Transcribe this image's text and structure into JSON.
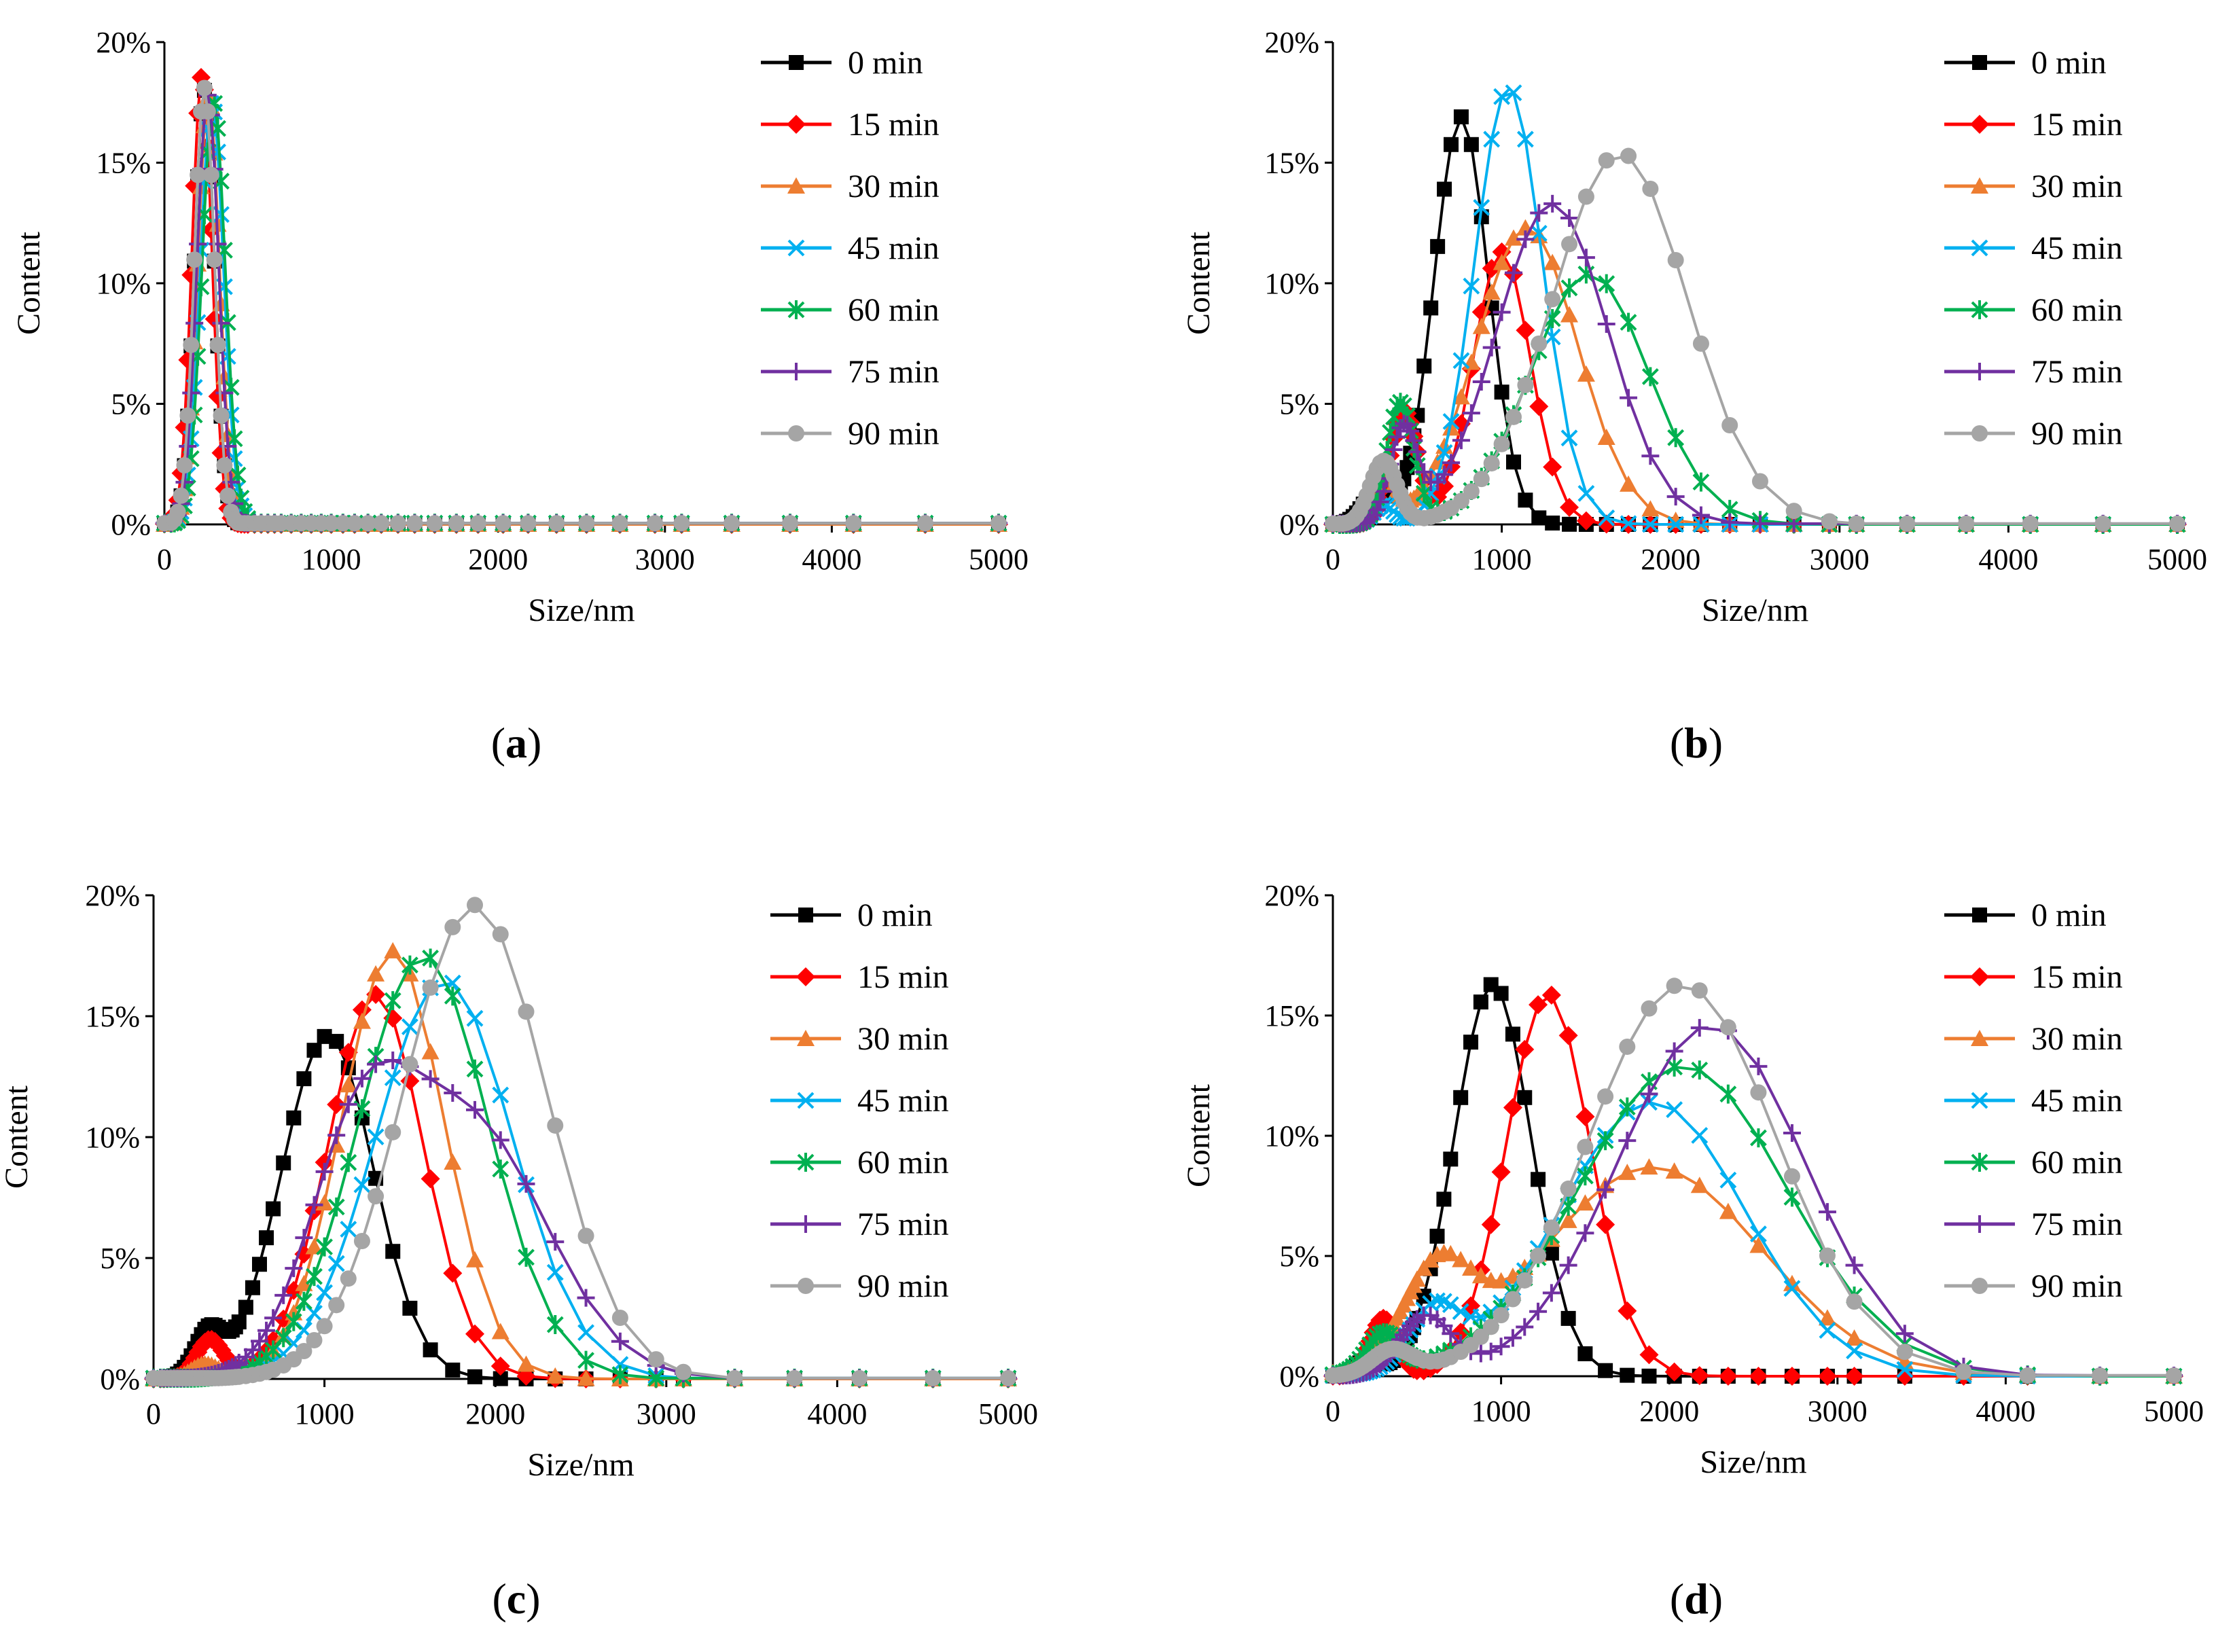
{
  "figure": {
    "type": "multi-panel particle size distribution"
  },
  "chart_data": [
    {
      "panel": "a",
      "type": "line",
      "title": "",
      "panel_label": {
        "open": "(",
        "letter": "a",
        "close": ")"
      },
      "xlabel": "Size/nm",
      "ylabel": "Content",
      "xlim": [
        0,
        5000
      ],
      "ylim": [
        0,
        20
      ],
      "xticks": [
        0,
        1000,
        2000,
        3000,
        4000,
        5000
      ],
      "yticks": [
        0,
        5,
        10,
        15,
        20
      ],
      "ytick_labels": [
        "0%",
        "5%",
        "10%",
        "15%",
        "20%"
      ],
      "legend_position": "top-right",
      "series": [
        {
          "name": "0 min",
          "color": "#000000",
          "marker": "square",
          "peaks": [
            [
              240,
              18,
              60
            ]
          ],
          "tail": 0
        },
        {
          "name": "15 min",
          "color": "#ff0000",
          "marker": "diamond",
          "peaks": [
            [
              225,
              18.6,
              60
            ]
          ],
          "tail": 0
        },
        {
          "name": "30 min",
          "color": "#ed7d31",
          "marker": "triangle",
          "peaks": [
            [
              265,
              17.8,
              65
            ]
          ],
          "tail": 0
        },
        {
          "name": "45 min",
          "color": "#00b0f0",
          "marker": "x",
          "peaks": [
            [
              285,
              17.5,
              70
            ]
          ],
          "tail": 0.05
        },
        {
          "name": "60 min",
          "color": "#00b050",
          "marker": "star",
          "peaks": [
            [
              295,
              17.5,
              70
            ]
          ],
          "tail": 0.05
        },
        {
          "name": "75 min",
          "color": "#7030a0",
          "marker": "plus",
          "peaks": [
            [
              260,
              17.8,
              65
            ]
          ],
          "tail": 0.05
        },
        {
          "name": "90 min",
          "color": "#a5a5a5",
          "marker": "circle",
          "peaks": [
            [
              240,
              18.1,
              60
            ]
          ],
          "tail": 0.05
        }
      ]
    },
    {
      "panel": "b",
      "type": "line",
      "title": "",
      "panel_label": {
        "open": "(",
        "letter": "b",
        "close": ")"
      },
      "xlabel": "Size/nm",
      "ylabel": "Content",
      "xlim": [
        0,
        5000
      ],
      "ylim": [
        0,
        20
      ],
      "xticks": [
        0,
        1000,
        2000,
        3000,
        4000,
        5000
      ],
      "yticks": [
        0,
        5,
        10,
        15,
        20
      ],
      "ytick_labels": [
        "0%",
        "5%",
        "10%",
        "15%",
        "20%"
      ],
      "legend_position": "top-right",
      "series": [
        {
          "name": "0 min",
          "color": "#000000",
          "marker": "square",
          "peaks": [
            [
              250,
              1.2,
              80
            ],
            [
              760,
              16.9,
              160
            ]
          ],
          "tail": 0
        },
        {
          "name": "15 min",
          "color": "#ff0000",
          "marker": "diamond",
          "peaks": [
            [
              420,
              4.7,
              80
            ],
            [
              1000,
              11.3,
              170
            ]
          ],
          "tail": 0
        },
        {
          "name": "30 min",
          "color": "#ed7d31",
          "marker": "triangle",
          "peaks": [
            [
              300,
              1.8,
              70
            ],
            [
              1150,
              12.3,
              300
            ]
          ],
          "tail": 0
        },
        {
          "name": "45 min",
          "color": "#00b0f0",
          "marker": "x",
          "peaks": [
            [
              300,
              0.8,
              60
            ],
            [
              1040,
              18.1,
              200
            ]
          ],
          "tail": 0
        },
        {
          "name": "60 min",
          "color": "#00b050",
          "marker": "star",
          "peaks": [
            [
              400,
              5.0,
              80
            ],
            [
              1520,
              10.4,
              350
            ]
          ],
          "tail": 0
        },
        {
          "name": "75 min",
          "color": "#7030a0",
          "marker": "plus",
          "peaks": [
            [
              420,
              3.8,
              80
            ],
            [
              1300,
              13.3,
              330
            ]
          ],
          "tail": 0.03
        },
        {
          "name": "90 min",
          "color": "#a5a5a5",
          "marker": "circle",
          "peaks": [
            [
              300,
              2.6,
              80
            ],
            [
              1700,
              15.4,
              400
            ]
          ],
          "tail": 0.03
        }
      ]
    },
    {
      "panel": "c",
      "type": "line",
      "title": "",
      "panel_label": {
        "open": "(",
        "letter": "c",
        "close": ")"
      },
      "xlabel": "Size/nm",
      "ylabel": "Content",
      "xlim": [
        0,
        5000
      ],
      "ylim": [
        0,
        20
      ],
      "xticks": [
        0,
        1000,
        2000,
        3000,
        4000,
        5000
      ],
      "yticks": [
        0,
        5,
        10,
        15,
        20
      ],
      "ytick_labels": [
        "0%",
        "5%",
        "10%",
        "15%",
        "20%"
      ],
      "legend_position": "top-right",
      "series": [
        {
          "name": "0 min",
          "color": "#000000",
          "marker": "square",
          "peaks": [
            [
              320,
              1.7,
              80
            ],
            [
              1020,
              14.2,
              270
            ]
          ],
          "tail": 0
        },
        {
          "name": "15 min",
          "color": "#ff0000",
          "marker": "diamond",
          "peaks": [
            [
              330,
              1.6,
              80
            ],
            [
              1300,
              15.9,
              280
            ]
          ],
          "tail": 0
        },
        {
          "name": "30 min",
          "color": "#ed7d31",
          "marker": "triangle",
          "peaks": [
            [
              300,
              0.6,
              80
            ],
            [
              1400,
              17.7,
              300
            ]
          ],
          "tail": 0
        },
        {
          "name": "45 min",
          "color": "#00b0f0",
          "marker": "x",
          "peaks": [
            [
              1700,
              16.5,
              400
            ]
          ],
          "tail": 0.03
        },
        {
          "name": "60 min",
          "color": "#00b050",
          "marker": "star",
          "peaks": [
            [
              1580,
              17.5,
              380
            ]
          ],
          "tail": 0.03
        },
        {
          "name": "75 min",
          "color": "#7030a0",
          "marker": "plus",
          "peaks": [
            [
              1200,
              8.5,
              300
            ],
            [
              1850,
              10.5,
              450
            ]
          ],
          "tail": 0.03
        },
        {
          "name": "90 min",
          "color": "#a5a5a5",
          "marker": "circle",
          "peaks": [
            [
              1880,
              19.6,
              420
            ]
          ],
          "tail": 0.03
        }
      ]
    },
    {
      "panel": "d",
      "type": "line",
      "title": "",
      "panel_label": {
        "open": "(",
        "letter": "d",
        "close": ")"
      },
      "xlabel": "Size/nm",
      "ylabel": "Content",
      "xlim": [
        0,
        5000
      ],
      "ylim": [
        0,
        20
      ],
      "xticks": [
        0,
        1000,
        2000,
        3000,
        4000,
        5000
      ],
      "yticks": [
        0,
        5,
        10,
        15,
        20
      ],
      "ytick_labels": [
        "0%",
        "5%",
        "10%",
        "15%",
        "20%"
      ],
      "legend_position": "top-right",
      "series": [
        {
          "name": "0 min",
          "color": "#000000",
          "marker": "square",
          "peaks": [
            [
              200,
              0.6,
              70
            ],
            [
              950,
              16.3,
              230
            ]
          ],
          "tail": 0
        },
        {
          "name": "15 min",
          "color": "#ff0000",
          "marker": "diamond",
          "peaks": [
            [
              300,
              2.4,
              80
            ],
            [
              1280,
              15.9,
              250
            ]
          ],
          "tail": 0
        },
        {
          "name": "30 min",
          "color": "#ed7d31",
          "marker": "triangle",
          "peaks": [
            [
              620,
              3.8,
              200
            ],
            [
              1900,
              8.7,
              650
            ]
          ],
          "tail": 0
        },
        {
          "name": "45 min",
          "color": "#00b0f0",
          "marker": "x",
          "peaks": [
            [
              600,
              2.4,
              150
            ],
            [
              1900,
              11.4,
              550
            ]
          ],
          "tail": 0
        },
        {
          "name": "60 min",
          "color": "#00b050",
          "marker": "star",
          "peaks": [
            [
              300,
              1.6,
              100
            ],
            [
              2080,
              12.9,
              620
            ]
          ],
          "tail": 0
        },
        {
          "name": "75 min",
          "color": "#7030a0",
          "marker": "plus",
          "peaks": [
            [
              550,
              2.4,
              150
            ],
            [
              2250,
              14.6,
              560
            ]
          ],
          "tail": 0.03
        },
        {
          "name": "90 min",
          "color": "#a5a5a5",
          "marker": "circle",
          "peaks": [
            [
              350,
              1.0,
              120
            ],
            [
              2080,
              16.3,
              560
            ]
          ],
          "tail": 0.03
        }
      ]
    }
  ],
  "sample_sizes": [
    0,
    40,
    60,
    80,
    100,
    120,
    140,
    160,
    180,
    200,
    220,
    240,
    260,
    280,
    300,
    320,
    340,
    360,
    380,
    400,
    420,
    440,
    460,
    480,
    500,
    540,
    580,
    620,
    660,
    700,
    760,
    820,
    880,
    940,
    1000,
    1070,
    1140,
    1220,
    1300,
    1400,
    1500,
    1620,
    1750,
    1880,
    2030,
    2180,
    2350,
    2530,
    2730,
    2940,
    3100,
    3400,
    3750,
    4130,
    4560,
    5000
  ]
}
